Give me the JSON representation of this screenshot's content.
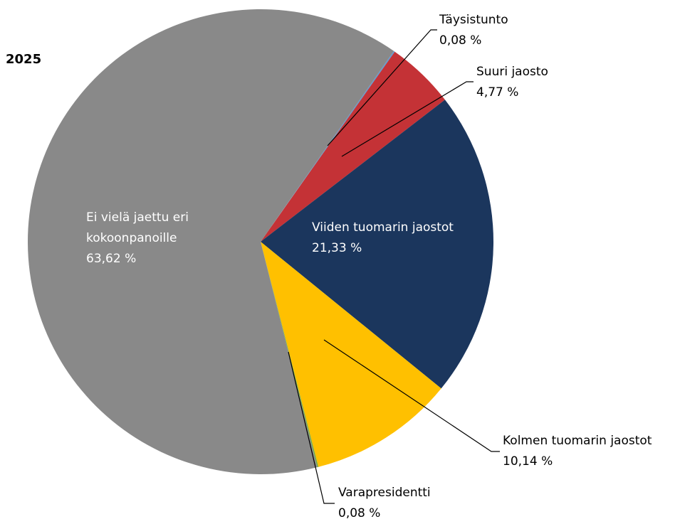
{
  "chart_data": {
    "type": "pie",
    "title": "2025",
    "categories": [
      "Täysistunto",
      "Suuri jaosto",
      "Viiden tuomarin jaostot",
      "Kolmen tuomarin jaostot",
      "Varapresidentti",
      "Ei vielä jaettu eri kokoonpanoille"
    ],
    "values": [
      0.08,
      4.77,
      21.33,
      10.14,
      0.08,
      63.62
    ],
    "value_labels": [
      "0,08 %",
      "4,77 %",
      "21,33 %",
      "10,14 %",
      "0,08 %",
      "63,62 %"
    ],
    "colors": [
      "#5b9bd5",
      "#c43236",
      "#1b365d",
      "#ffc000",
      "#70ad47",
      "#898989"
    ]
  }
}
